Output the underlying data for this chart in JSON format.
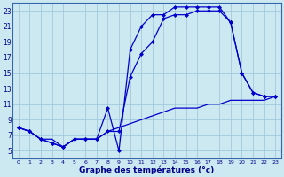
{
  "xlabel": "Graphe des températures (°c)",
  "background_color": "#cce8f0",
  "grid_color": "#99c4d8",
  "line_color": "#0000cc",
  "ylim": [
    4,
    24
  ],
  "xlim": [
    -0.5,
    23.5
  ],
  "yticks": [
    5,
    7,
    9,
    11,
    13,
    15,
    17,
    19,
    21,
    23
  ],
  "xticks": [
    0,
    1,
    2,
    3,
    4,
    5,
    6,
    7,
    8,
    9,
    10,
    11,
    12,
    13,
    14,
    15,
    16,
    17,
    18,
    19,
    20,
    21,
    22,
    23
  ],
  "line1_x": [
    0,
    1,
    2,
    3,
    4,
    5,
    6,
    7,
    8,
    9,
    10,
    11,
    12,
    13,
    14,
    15,
    16,
    17,
    18,
    19,
    20,
    21,
    22,
    23
  ],
  "line1_y": [
    8.0,
    7.5,
    6.5,
    6.0,
    5.5,
    6.5,
    6.5,
    6.5,
    10.5,
    5.0,
    18.0,
    21.0,
    22.5,
    22.5,
    23.5,
    23.5,
    23.5,
    23.5,
    23.5,
    21.5,
    15.0,
    12.5,
    12.0,
    12.0
  ],
  "line2_x": [
    0,
    1,
    2,
    3,
    4,
    5,
    6,
    7,
    8,
    9,
    10,
    11,
    12,
    13,
    14,
    15,
    16,
    17,
    18,
    19,
    20,
    21,
    22,
    23
  ],
  "line2_y": [
    8.0,
    7.5,
    6.5,
    6.0,
    5.5,
    6.5,
    6.5,
    6.5,
    7.5,
    7.5,
    14.5,
    17.5,
    19.0,
    22.0,
    22.5,
    22.5,
    23.0,
    23.0,
    23.0,
    21.5,
    15.0,
    12.5,
    12.0,
    12.0
  ],
  "line3_x": [
    0,
    1,
    2,
    3,
    4,
    5,
    6,
    7,
    8,
    9,
    10,
    11,
    12,
    13,
    14,
    15,
    16,
    17,
    18,
    19,
    20,
    21,
    22,
    23
  ],
  "line3_y": [
    8.0,
    7.5,
    6.5,
    6.5,
    5.5,
    6.5,
    6.5,
    6.5,
    7.5,
    8.0,
    8.5,
    9.0,
    9.5,
    10.0,
    10.5,
    10.5,
    10.5,
    11.0,
    11.0,
    11.5,
    11.5,
    11.5,
    11.5,
    12.0
  ]
}
